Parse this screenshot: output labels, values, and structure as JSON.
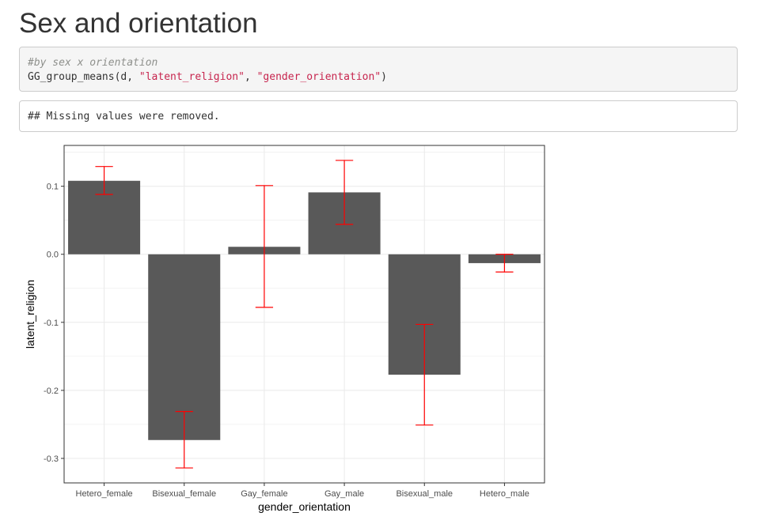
{
  "heading": "Sex and orientation",
  "source_code": {
    "comment": "#by sex x orientation",
    "fn_open": "GG_group_means(d, ",
    "arg1": "\"latent_religion\"",
    "sep": ", ",
    "arg2": "\"gender_orientation\"",
    "fn_close": ")"
  },
  "output_text": "## Missing values were removed.",
  "colors": {
    "bar_fill": "#595959",
    "error_bar": "#ff0000",
    "grid": "#ebebeb",
    "panel_border": "#333333",
    "code_bg": "#f5f5f5",
    "string_literal": "#c7254e"
  },
  "chart_data": {
    "type": "bar",
    "xlabel": "gender_orientation",
    "ylabel": "latent_religion",
    "categories": [
      "Hetero_female",
      "Bisexual_female",
      "Gay_female",
      "Gay_male",
      "Bisexual_male",
      "Hetero_male"
    ],
    "values": [
      0.108,
      -0.273,
      0.011,
      0.091,
      -0.177,
      -0.013
    ],
    "error_low": [
      0.088,
      -0.314,
      -0.078,
      0.044,
      -0.251,
      -0.026
    ],
    "error_high": [
      0.129,
      -0.231,
      0.101,
      0.138,
      -0.103,
      0.0
    ],
    "ylim": [
      -0.336,
      0.16
    ],
    "yticks": [
      0.1,
      0.0,
      -0.1,
      -0.2,
      -0.3
    ],
    "ytick_labels": [
      "0.1",
      "0.0",
      "-0.1",
      "-0.2",
      "-0.3"
    ],
    "grid": true,
    "legend": "none"
  }
}
